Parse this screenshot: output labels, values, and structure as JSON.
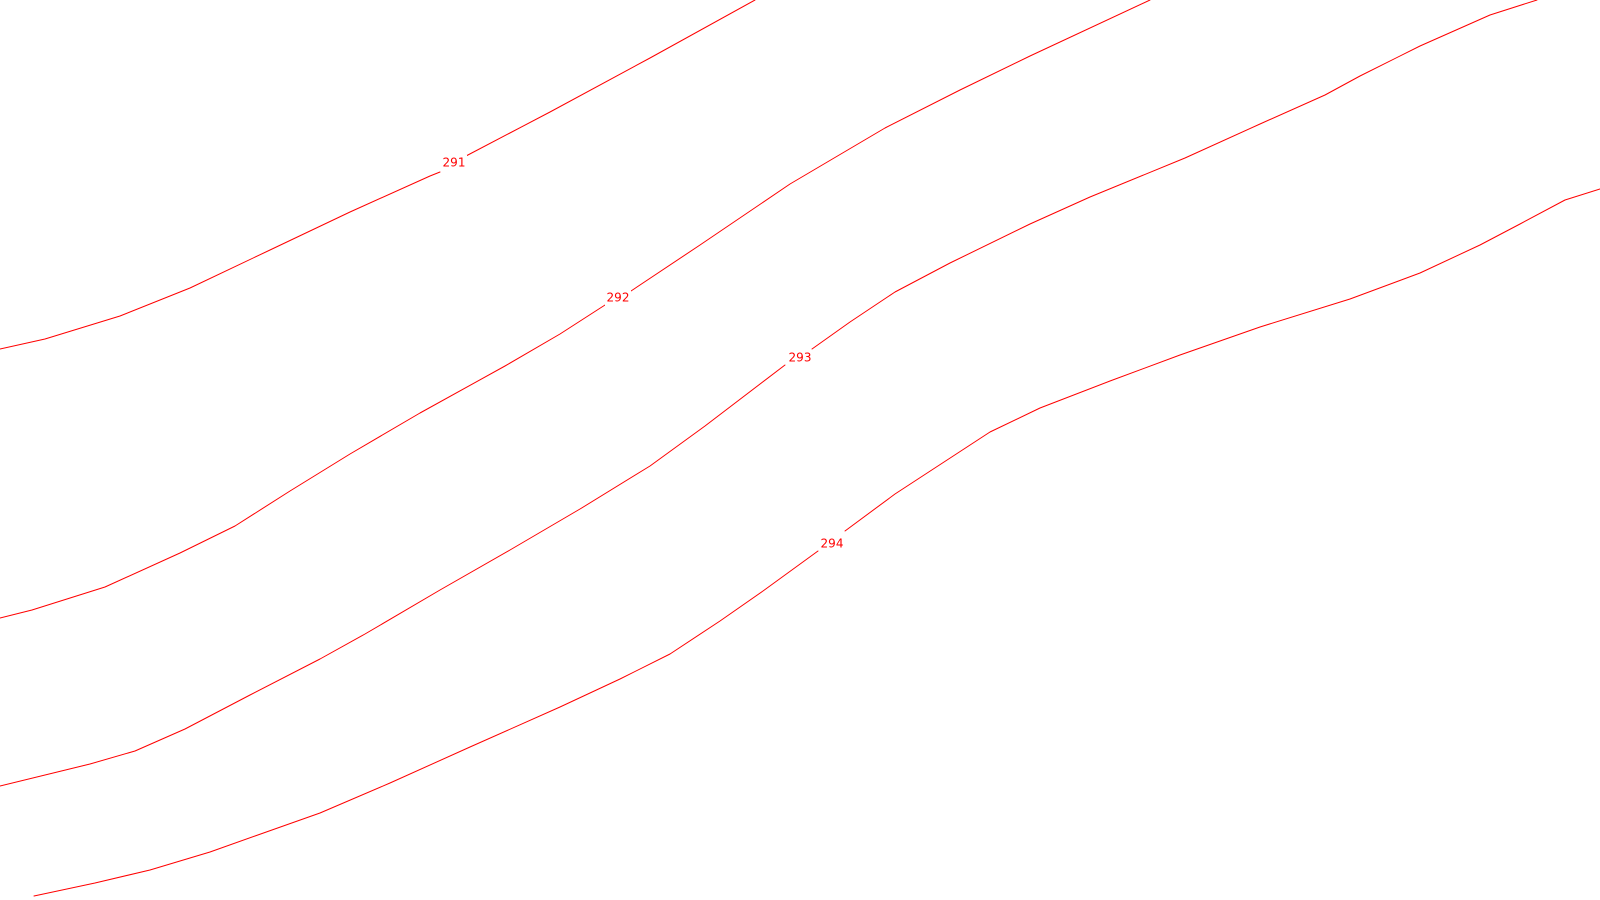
{
  "map": {
    "type": "contour-map",
    "line_color": "#ff0000",
    "background_color": "#ffffff",
    "contours": [
      {
        "elevation": "291",
        "label": "291"
      },
      {
        "elevation": "292",
        "label": "292"
      },
      {
        "elevation": "293",
        "label": "293"
      },
      {
        "elevation": "294",
        "label": "294"
      }
    ]
  }
}
